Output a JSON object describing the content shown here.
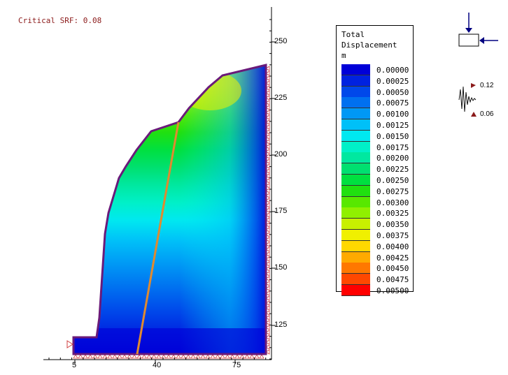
{
  "header": {
    "critical_srf": "Critical SRF: 0.08"
  },
  "legend": {
    "title_lines": [
      "Total",
      "Displacement",
      "m"
    ],
    "entries": [
      {
        "value": "0.00000",
        "color": "#0000d8"
      },
      {
        "value": "0.00025",
        "color": "#0022e0"
      },
      {
        "value": "0.00050",
        "color": "#0048ea"
      },
      {
        "value": "0.00075",
        "color": "#0070f0"
      },
      {
        "value": "0.00100",
        "color": "#0098f5"
      },
      {
        "value": "0.00125",
        "color": "#00c0f8"
      },
      {
        "value": "0.00150",
        "color": "#00e8f0"
      },
      {
        "value": "0.00175",
        "color": "#00f0c8"
      },
      {
        "value": "0.00200",
        "color": "#00e8a0"
      },
      {
        "value": "0.00225",
        "color": "#00e070"
      },
      {
        "value": "0.00250",
        "color": "#00e040"
      },
      {
        "value": "0.00275",
        "color": "#20e010"
      },
      {
        "value": "0.00300",
        "color": "#58e800"
      },
      {
        "value": "0.00325",
        "color": "#90f000"
      },
      {
        "value": "0.00350",
        "color": "#c8f000"
      },
      {
        "value": "0.00375",
        "color": "#f0f000"
      },
      {
        "value": "0.00400",
        "color": "#ffd800"
      },
      {
        "value": "0.00425",
        "color": "#ffaa00"
      },
      {
        "value": "0.00450",
        "color": "#ff7800"
      },
      {
        "value": "0.00475",
        "color": "#ff4800"
      },
      {
        "value": "0.00500",
        "color": "#ff0000"
      }
    ]
  },
  "axes": {
    "y_ticks": [
      "250",
      "225",
      "200",
      "175",
      "150",
      "125"
    ],
    "x_ticks": [
      "5",
      "40",
      "75"
    ]
  },
  "seismic": {
    "horizontal": "0.12",
    "vertical": "0.06"
  },
  "colors": {
    "boundary": "#6a1a7a",
    "failure_line": "#e08a30",
    "support_markers": "#d04040",
    "srf_text": "#8b1a1a"
  }
}
